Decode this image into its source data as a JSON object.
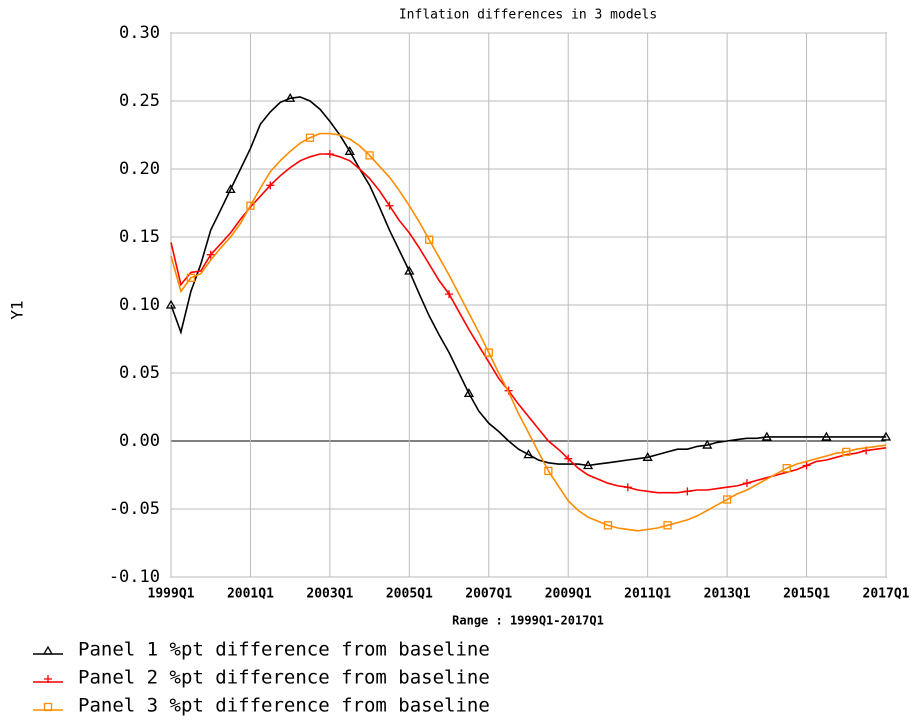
{
  "chart_data": {
    "type": "line",
    "title": "Inflation differences in 3 models",
    "y_label": "Y1",
    "x_label": "Range : 1999Q1-2017Q1",
    "x": [
      "1999Q1",
      null,
      null,
      null,
      null,
      null,
      null,
      null,
      "2001Q1",
      null,
      null,
      null,
      null,
      null,
      null,
      null,
      "2003Q1",
      null,
      null,
      null,
      null,
      null,
      null,
      null,
      "2005Q1",
      null,
      null,
      null,
      null,
      null,
      null,
      null,
      "2007Q1",
      null,
      null,
      null,
      null,
      null,
      null,
      null,
      "2009Q1",
      null,
      null,
      null,
      null,
      null,
      null,
      null,
      "2011Q1",
      null,
      null,
      null,
      null,
      null,
      null,
      null,
      "2013Q1",
      null,
      null,
      null,
      null,
      null,
      null,
      null,
      "2015Q1",
      null,
      null,
      null,
      null,
      null,
      null,
      null,
      "2017Q1"
    ],
    "ylim": [
      -0.1,
      0.3
    ],
    "yticks": [
      {
        "value": -0.1,
        "label": "-0.10"
      },
      {
        "value": -0.05,
        "label": "-0.05"
      },
      {
        "value": 0,
        "label": "0.00"
      },
      {
        "value": 0.05,
        "label": "0.05"
      },
      {
        "value": 0.1,
        "label": "0.10"
      },
      {
        "value": 0.15,
        "label": "0.15"
      },
      {
        "value": 0.2,
        "label": "0.20"
      },
      {
        "value": 0.25,
        "label": "0.25"
      },
      {
        "value": 0.3,
        "label": "0.30"
      }
    ],
    "grid": true,
    "legend": "bottom-left",
    "series": [
      {
        "name": "Panel 1 %pt difference from baseline",
        "color": "#000000",
        "marker": "triangle",
        "values": [
          0.1,
          0.08,
          0.11,
          0.13,
          0.155,
          0.17,
          0.185,
          0.2,
          0.215,
          0.233,
          0.242,
          0.249,
          0.252,
          0.253,
          0.25,
          0.244,
          0.235,
          0.225,
          0.213,
          0.2,
          0.188,
          0.172,
          0.155,
          0.14,
          0.125,
          0.108,
          0.092,
          0.078,
          0.065,
          0.05,
          0.035,
          0.022,
          0.013,
          0.007,
          0.0,
          -0.006,
          -0.01,
          -0.014,
          -0.016,
          -0.017,
          -0.017,
          -0.017,
          -0.018,
          -0.017,
          -0.016,
          -0.015,
          -0.014,
          -0.013,
          -0.012,
          -0.01,
          -0.008,
          -0.006,
          -0.006,
          -0.004,
          -0.003,
          -0.001,
          0.0,
          0.001,
          0.002,
          0.002,
          0.003,
          0.003,
          0.003,
          0.003,
          0.003,
          0.003,
          0.003,
          0.003,
          0.003,
          0.003,
          0.003,
          0.003,
          0.003
        ]
      },
      {
        "name": "Panel 2 %pt difference from baseline",
        "color": "#ff0000",
        "marker": "plus",
        "values": [
          0.146,
          0.115,
          0.124,
          0.125,
          0.137,
          0.145,
          0.153,
          0.163,
          0.172,
          0.18,
          0.188,
          0.195,
          0.201,
          0.206,
          0.209,
          0.211,
          0.211,
          0.209,
          0.206,
          0.2,
          0.193,
          0.184,
          0.173,
          0.162,
          0.153,
          0.142,
          0.13,
          0.118,
          0.108,
          0.095,
          0.082,
          0.07,
          0.058,
          0.046,
          0.037,
          0.027,
          0.018,
          0.009,
          0.0,
          -0.006,
          -0.013,
          -0.02,
          -0.025,
          -0.028,
          -0.031,
          -0.033,
          -0.034,
          -0.036,
          -0.037,
          -0.038,
          -0.038,
          -0.038,
          -0.037,
          -0.036,
          -0.036,
          -0.035,
          -0.034,
          -0.033,
          -0.031,
          -0.029,
          -0.027,
          -0.025,
          -0.023,
          -0.021,
          -0.018,
          -0.015,
          -0.014,
          -0.012,
          -0.01,
          -0.009,
          -0.007,
          -0.006,
          -0.005
        ]
      },
      {
        "name": "Panel 3 %pt difference from baseline",
        "color": "#ff8c00",
        "marker": "square",
        "values": [
          0.136,
          0.11,
          0.12,
          0.123,
          0.133,
          0.142,
          0.15,
          0.16,
          0.173,
          0.186,
          0.198,
          0.206,
          0.213,
          0.219,
          0.223,
          0.226,
          0.226,
          0.225,
          0.222,
          0.217,
          0.21,
          0.202,
          0.194,
          0.184,
          0.173,
          0.161,
          0.148,
          0.135,
          0.122,
          0.108,
          0.094,
          0.08,
          0.065,
          0.05,
          0.036,
          0.02,
          0.006,
          -0.008,
          -0.022,
          -0.033,
          -0.044,
          -0.051,
          -0.056,
          -0.059,
          -0.062,
          -0.064,
          -0.065,
          -0.066,
          -0.065,
          -0.064,
          -0.062,
          -0.06,
          -0.058,
          -0.055,
          -0.051,
          -0.047,
          -0.043,
          -0.039,
          -0.036,
          -0.032,
          -0.028,
          -0.024,
          -0.02,
          -0.017,
          -0.015,
          -0.013,
          -0.011,
          -0.009,
          -0.008,
          -0.006,
          -0.005,
          -0.004,
          -0.003
        ]
      }
    ]
  }
}
